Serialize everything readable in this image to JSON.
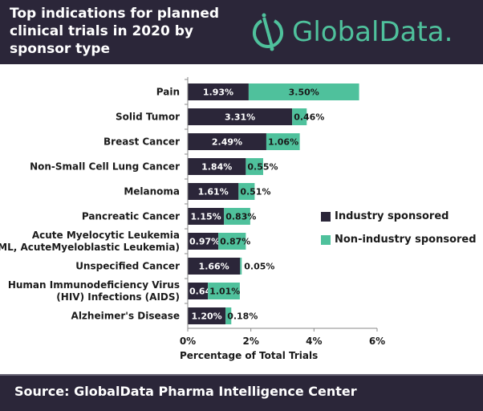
{
  "header": {
    "title": "Top indications for planned clinical trials in 2020 by sponsor type",
    "logo_text": "GlobalData.",
    "logo_icon": "globaldata-logo-icon"
  },
  "footer": {
    "source": "Source:  GlobalData Pharma Intelligence Center"
  },
  "colors": {
    "industry": "#2b2639",
    "non_industry": "#4fc19c",
    "background": "#2b2639"
  },
  "chart_data": {
    "type": "bar",
    "orientation": "horizontal",
    "stacked": true,
    "title": "Top indications for planned clinical trials in 2020 by sponsor type",
    "xlabel": "Percentage of Total Trials",
    "ylabel": "",
    "xlim": [
      0,
      6
    ],
    "xticks": [
      "0%",
      "2%",
      "4%",
      "6%"
    ],
    "grid": false,
    "legend_position": "right",
    "categories": [
      [
        "Pain"
      ],
      [
        "Solid Tumor"
      ],
      [
        "Breast Cancer"
      ],
      [
        "Non-Small Cell Lung Cancer"
      ],
      [
        "Melanoma"
      ],
      [
        "Pancreatic Cancer"
      ],
      [
        "Acute Myelocytic Leukemia",
        "(AML, AcuteMyeloblastic Leukemia)"
      ],
      [
        "Unspecified Cancer"
      ],
      [
        "Human Immunodeficiency Virus",
        "(HIV) Infections (AIDS)"
      ],
      [
        "Alzheimer's Disease"
      ]
    ],
    "series": [
      {
        "name": "Industry sponsored",
        "values": [
          1.93,
          3.31,
          2.49,
          1.84,
          1.61,
          1.15,
          0.97,
          1.66,
          0.64,
          1.2
        ],
        "labels": [
          "1.93%",
          "3.31%",
          "2.49%",
          "1.84%",
          "1.61%",
          "1.15%",
          "0.97%",
          "1.66%",
          "0.64%",
          "1.20%"
        ]
      },
      {
        "name": "Non-industry sponsored",
        "values": [
          3.5,
          0.46,
          1.06,
          0.55,
          0.51,
          0.83,
          0.87,
          0.05,
          1.01,
          0.18
        ],
        "labels": [
          "3.50%",
          "0.46%",
          "1.06%",
          "0.55%",
          "0.51%",
          "0.83%",
          "0.87%",
          "0.05%",
          "1.01%",
          "0.18%"
        ]
      }
    ]
  }
}
